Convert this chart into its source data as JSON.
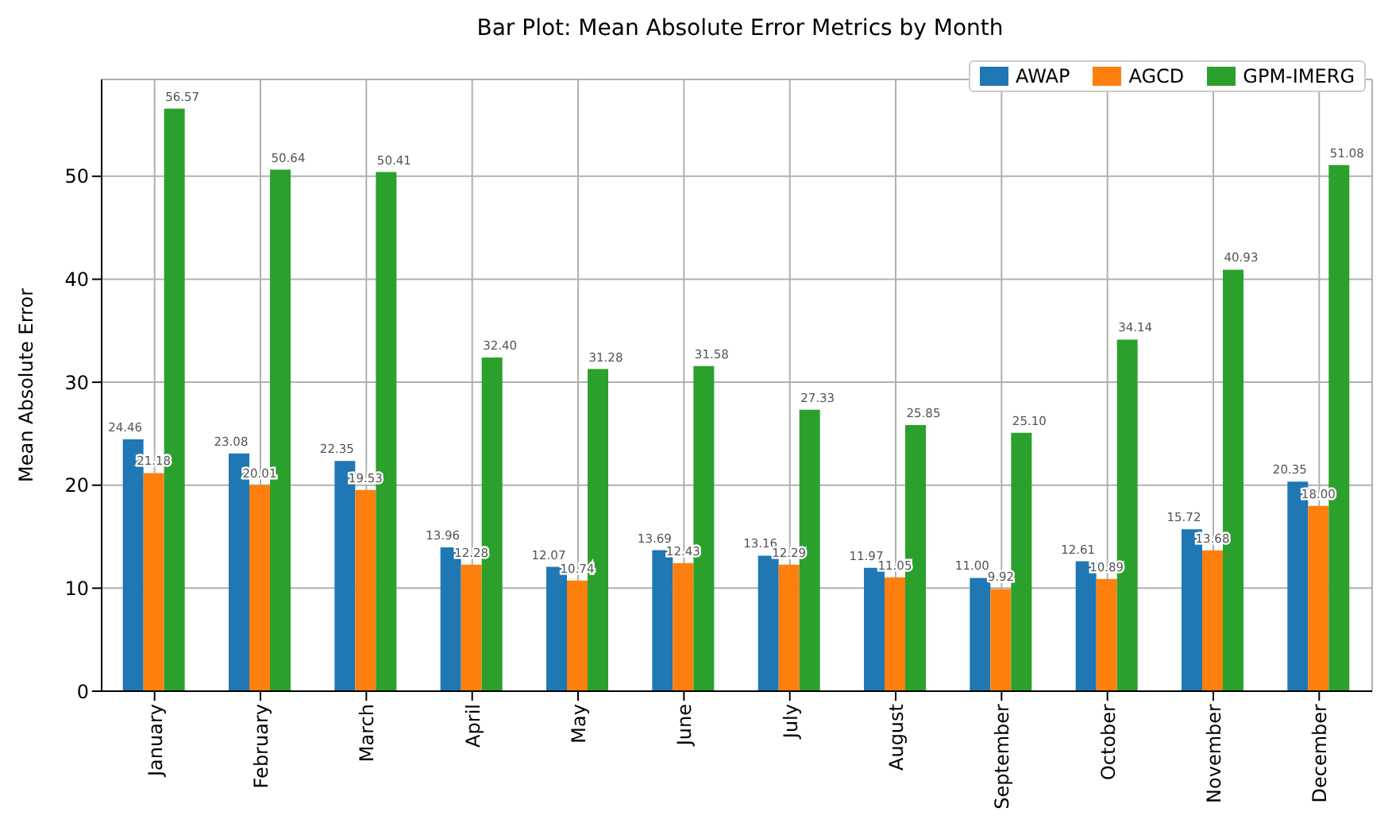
{
  "chart_data": {
    "type": "bar",
    "title": "Bar Plot:  Mean Absolute Error Metrics by Month",
    "ylabel": "Mean Absolute Error",
    "categories": [
      "January",
      "February",
      "March",
      "April",
      "May",
      "June",
      "July",
      "August",
      "September",
      "October",
      "November",
      "December"
    ],
    "series": [
      {
        "name": "AWAP",
        "color": "#1f77b4",
        "values": [
          24.46,
          23.08,
          22.35,
          13.96,
          12.07,
          13.69,
          13.16,
          11.97,
          11.0,
          12.61,
          15.72,
          20.35
        ],
        "value_labels": [
          "24.46",
          "23.08",
          "22.35",
          "13.96",
          "12.07",
          "13.69",
          "13.16",
          "11.97",
          "11.00",
          "12.61",
          "15.72",
          "20.35"
        ]
      },
      {
        "name": "AGCD",
        "color": "#ff7f0e",
        "values": [
          21.18,
          20.01,
          19.53,
          12.28,
          10.74,
          12.43,
          12.29,
          11.05,
          9.92,
          10.89,
          13.68,
          18.0
        ],
        "value_labels": [
          "21.18",
          "20.01",
          "19.53",
          "12.28",
          "10.74",
          "12.43",
          "12.29",
          "11.05",
          "9.92",
          "10.89",
          "13.68",
          "18.00"
        ]
      },
      {
        "name": "GPM-IMERG",
        "color": "#2ca02c",
        "values": [
          56.57,
          50.64,
          50.41,
          32.4,
          31.28,
          31.58,
          27.33,
          25.85,
          25.1,
          34.14,
          40.93,
          51.08
        ],
        "value_labels": [
          "56.57",
          "50.64",
          "50.41",
          "32.40",
          "31.28",
          "31.58",
          "27.33",
          "25.85",
          "25.10",
          "34.14",
          "40.93",
          "51.08"
        ]
      }
    ],
    "ylim": [
      0,
      59.4
    ],
    "yticks": [
      0,
      10,
      20,
      30,
      40,
      50
    ],
    "grid": true,
    "legend": "top right"
  }
}
